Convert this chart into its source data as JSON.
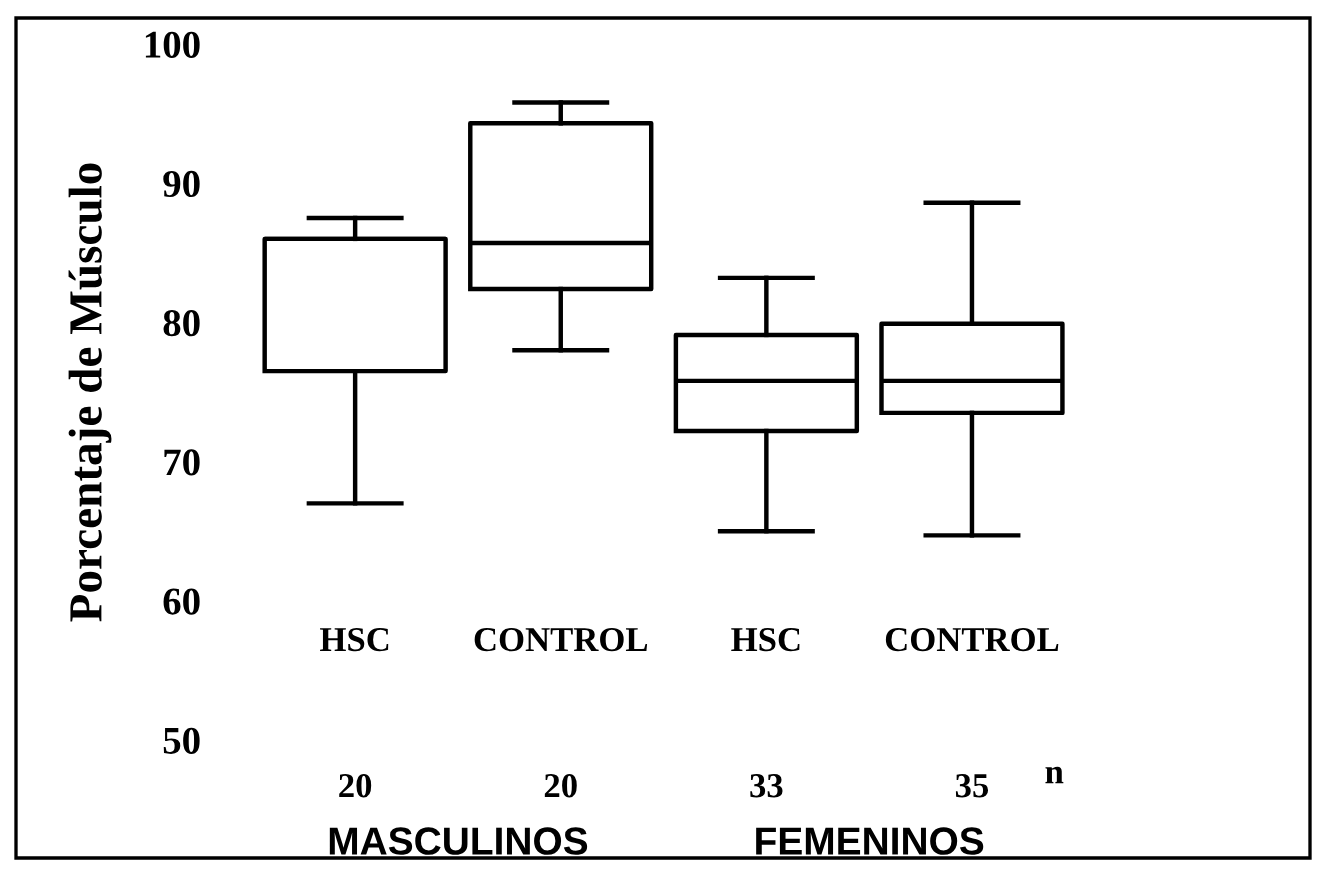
{
  "chart_data": {
    "type": "box",
    "ylabel": "Porcentaje de Músculo",
    "categories": [
      "HSC",
      "CONTROL",
      "HSC",
      "CONTROL"
    ],
    "boxes": [
      {
        "low": 67,
        "q1": 76.5,
        "median": 86,
        "q3": 86,
        "high": 87.5
      },
      {
        "low": 78,
        "q1": 82.4,
        "median": 85.7,
        "q3": 94.3,
        "high": 95.8
      },
      {
        "low": 65,
        "q1": 72.2,
        "median": 75.8,
        "q3": 79.1,
        "high": 83.2
      },
      {
        "low": 64.7,
        "q1": 73.5,
        "median": 75.8,
        "q3": 79.9,
        "high": 88.6
      }
    ],
    "color": "#000000",
    "ylim": [
      50,
      100
    ],
    "yticks": [
      50,
      60,
      70,
      80,
      90,
      100
    ],
    "annotations": [
      "20",
      "20",
      "33",
      "35",
      "n",
      "MASCULINOS",
      "FEMENINOS"
    ],
    "grid": false
  }
}
